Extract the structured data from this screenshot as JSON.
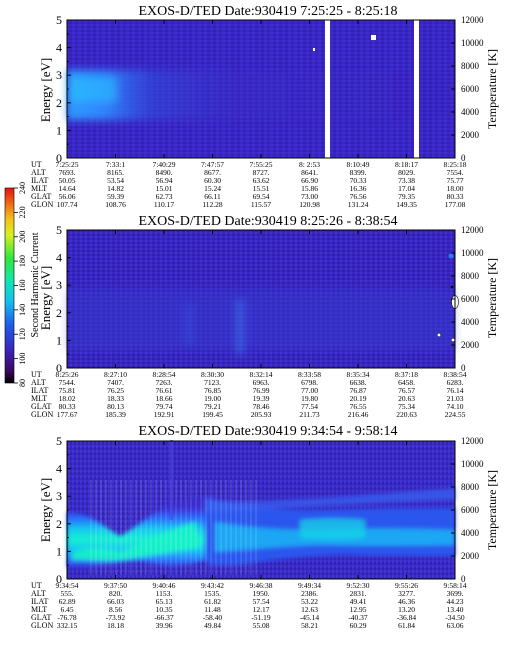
{
  "colorbar": {
    "label": "Second Harmonic Current",
    "ticks": [
      "80",
      "100",
      "120",
      "140",
      "160",
      "180",
      "200",
      "220",
      "240"
    ]
  },
  "chart_data": [
    {
      "type": "heatmap",
      "title": "EXOS-D/TED   Date:930419  7:25:25 - 8:25:18",
      "ylabel": "Energy [eV]",
      "y2label": "Temperature [K]",
      "ylim": [
        0,
        5
      ],
      "y2lim": [
        0,
        12000
      ],
      "yticks": [
        "0",
        "1",
        "2",
        "3",
        "4",
        "5"
      ],
      "y2ticks": [
        "0",
        "2000",
        "4000",
        "6000",
        "8000",
        "10000",
        "12000"
      ],
      "rows": [
        {
          "name": "UT",
          "values": [
            "7:25:25",
            "7:33:1",
            "7:40:29",
            "7:47:57",
            "7:55:25",
            "8: 2:53",
            "8:10:49",
            "8:18:17",
            "8:25:18"
          ]
        },
        {
          "name": "ALT",
          "values": [
            "7693.",
            "8165.",
            "8490.",
            "8677.",
            "8727.",
            "8641.",
            "8399.",
            "8029.",
            "7554."
          ]
        },
        {
          "name": "ILAT",
          "values": [
            "50.05",
            "53.54",
            "56.94",
            "60.30",
            "63.62",
            "66.90",
            "70.33",
            "73.38",
            "75.77"
          ]
        },
        {
          "name": "MLT",
          "values": [
            "14.64",
            "14.82",
            "15.01",
            "15.24",
            "15.51",
            "15.86",
            "16.36",
            "17.04",
            "18.00"
          ]
        },
        {
          "name": "GLAT",
          "values": [
            "56.06",
            "59.39",
            "62.73",
            "66.11",
            "69.54",
            "73.00",
            "76.56",
            "79.35",
            "80.33"
          ]
        },
        {
          "name": "GLON",
          "values": [
            "107.74",
            "108.76",
            "110.17",
            "112.28",
            "115.57",
            "120.98",
            "131.24",
            "149.35",
            "177.08"
          ]
        }
      ]
    },
    {
      "type": "heatmap",
      "title": "EXOS-D/TED   Date:930419  8:25:26 - 8:38:54",
      "ylabel": "Energy [eV]",
      "y2label": "Temperature [K]",
      "ylim": [
        0,
        5
      ],
      "y2lim": [
        0,
        12000
      ],
      "yticks": [
        "0",
        "1",
        "2",
        "3",
        "4",
        "5"
      ],
      "y2ticks": [
        "0",
        "2000",
        "4000",
        "6000",
        "8000",
        "10000",
        "12000"
      ],
      "rows": [
        {
          "name": "UT",
          "values": [
            "8:25:26",
            "8:27:10",
            "8:28:54",
            "8:30:30",
            "8:32:14",
            "8:33:58",
            "8:35:34",
            "8:37:18",
            "8:38:54"
          ]
        },
        {
          "name": "ALT",
          "values": [
            "7544.",
            "7407.",
            "7263.",
            "7123.",
            "6963.",
            "6798.",
            "6638.",
            "6458.",
            "6283."
          ]
        },
        {
          "name": "ILAT",
          "values": [
            "75.81",
            "76.25",
            "76.61",
            "76.85",
            "76.99",
            "77.00",
            "76.87",
            "76.57",
            "76.14"
          ]
        },
        {
          "name": "MLT",
          "values": [
            "18.02",
            "18.33",
            "18.66",
            "19.00",
            "19.39",
            "19.80",
            "20.19",
            "20.63",
            "21.03"
          ]
        },
        {
          "name": "GLAT",
          "values": [
            "80.33",
            "80.13",
            "79.74",
            "79.21",
            "78.46",
            "77.54",
            "76.55",
            "75.34",
            "74.10"
          ]
        },
        {
          "name": "GLON",
          "values": [
            "177.67",
            "185.39",
            "192.91",
            "199.45",
            "205.93",
            "211.73",
            "216.46",
            "220.63",
            "224.55"
          ]
        }
      ]
    },
    {
      "type": "heatmap",
      "title": "EXOS-D/TED   Date:930419  9:34:54 - 9:58:14",
      "ylabel": "Energy [eV]",
      "y2label": "Temperature [K]",
      "ylim": [
        0,
        5
      ],
      "y2lim": [
        0,
        12000
      ],
      "yticks": [
        "0",
        "1",
        "2",
        "3",
        "4",
        "5"
      ],
      "y2ticks": [
        "0",
        "2000",
        "4000",
        "6000",
        "8000",
        "10000",
        "12000"
      ],
      "rows": [
        {
          "name": "UT",
          "values": [
            "9:34:54",
            "9:37:50",
            "9:40:46",
            "9:43:42",
            "9:46:38",
            "9:49:34",
            "9:52:30",
            "9:55:26",
            "9:58:14"
          ]
        },
        {
          "name": "ALT",
          "values": [
            "555.",
            "820.",
            "1153.",
            "1535.",
            "1950.",
            "2386.",
            "2831.",
            "3277.",
            "3699."
          ]
        },
        {
          "name": "ILAT",
          "values": [
            "62.89",
            "66.03",
            "65.13",
            "61.82",
            "57.54",
            "53.22",
            "49.41",
            "46.36",
            "44.23"
          ]
        },
        {
          "name": "MLT",
          "values": [
            "6.45",
            "8.56",
            "10.35",
            "11.48",
            "12.17",
            "12.63",
            "12.95",
            "13.20",
            "13.40"
          ]
        },
        {
          "name": "GLAT",
          "values": [
            "-76.78",
            "-73.92",
            "-66.37",
            "-58.40",
            "-51.19",
            "-45.14",
            "-40.37",
            "-36.84",
            "-34.50"
          ]
        },
        {
          "name": "GLON",
          "values": [
            "332.15",
            "18.18",
            "39.96",
            "49.84",
            "55.08",
            "58.21",
            "60.29",
            "61.84",
            "63.06"
          ]
        }
      ]
    }
  ]
}
